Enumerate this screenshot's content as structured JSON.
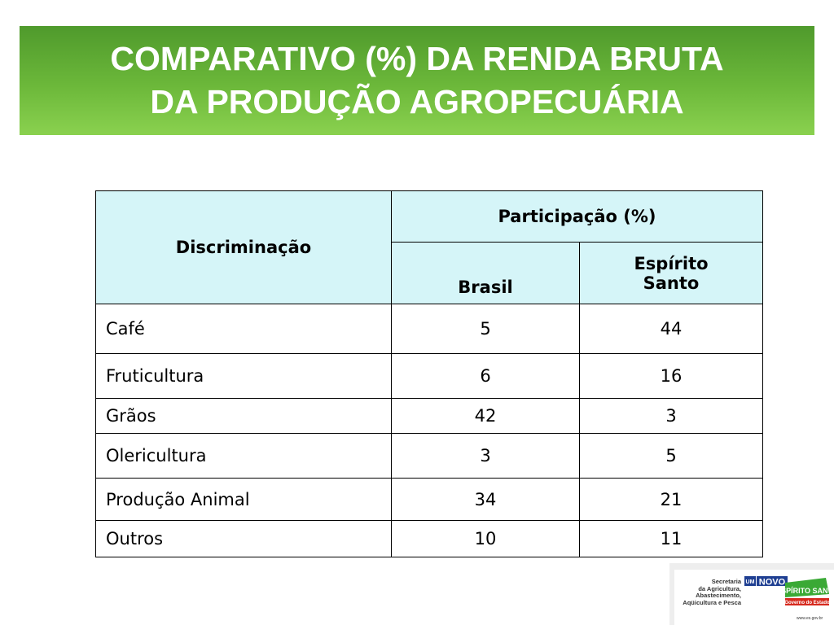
{
  "title": {
    "line1": "COMPARATIVO (%) DA RENDA BRUTA",
    "line2": "DA PRODUÇÃO AGROPECUÁRIA"
  },
  "table": {
    "header_discriminacao": "Discriminação",
    "header_participacao": "Participação (%)",
    "header_brasil": "Brasil",
    "header_espirito_line1": "Espírito",
    "header_espirito_line2": "Santo",
    "rows": [
      {
        "label": "Café",
        "brasil": "5",
        "es": "44"
      },
      {
        "label": "Fruticultura",
        "brasil": "6",
        "es": "16"
      },
      {
        "label": "Grãos",
        "brasil": "42",
        "es": "3"
      },
      {
        "label": "Olericultura",
        "brasil": "3",
        "es": "5"
      },
      {
        "label": "Produção Animal",
        "brasil": "34",
        "es": "21"
      },
      {
        "label": "Outros",
        "brasil": "10",
        "es": "11"
      }
    ]
  },
  "footer_logo": {
    "secretaria_lines": [
      "Secretaria",
      "da Agricultura,",
      "Abastecimento,",
      "Aqüicultura e Pesca"
    ],
    "badge_um": "UM",
    "badge_novo": "NOVO",
    "badge_espirito_santo": "ESPÍRITO SANTO",
    "badge_governo": "Governo do Estado",
    "url": "www.es.gov.br"
  },
  "colors": {
    "title_green": "#6cb83a",
    "header_fill": "#d5f5f8",
    "badge_blue": "#1f3f92",
    "badge_green": "#3aa935",
    "badge_red": "#d62a1e"
  }
}
